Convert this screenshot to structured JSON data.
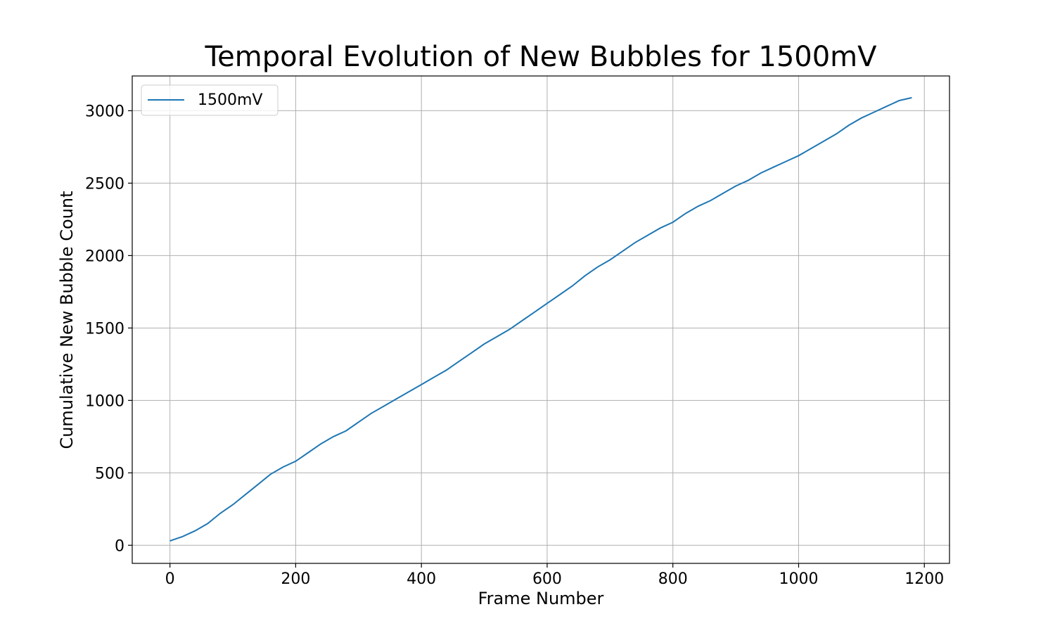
{
  "chart_data": {
    "type": "line",
    "title": "Temporal Evolution of New Bubbles for 1500mV",
    "xlabel": "Frame Number",
    "ylabel": "Cumulative New Bubble Count",
    "xlim": [
      -60,
      1240
    ],
    "ylim": [
      -125,
      3240
    ],
    "xticks": [
      0,
      200,
      400,
      600,
      800,
      1000,
      1200
    ],
    "yticks": [
      0,
      500,
      1000,
      1500,
      2000,
      2500,
      3000
    ],
    "grid": true,
    "legend_position": "top-left",
    "series": [
      {
        "name": "1500mV",
        "color": "#1f77b4",
        "x": [
          0,
          20,
          40,
          60,
          80,
          100,
          120,
          140,
          160,
          180,
          200,
          220,
          240,
          260,
          280,
          300,
          320,
          340,
          360,
          380,
          400,
          420,
          440,
          460,
          480,
          500,
          520,
          540,
          560,
          580,
          600,
          620,
          640,
          660,
          680,
          700,
          720,
          740,
          760,
          780,
          800,
          820,
          840,
          860,
          880,
          900,
          920,
          940,
          960,
          980,
          1000,
          1020,
          1040,
          1060,
          1080,
          1100,
          1120,
          1140,
          1160,
          1180
        ],
        "y": [
          30,
          60,
          100,
          150,
          220,
          280,
          350,
          420,
          490,
          540,
          580,
          640,
          700,
          750,
          790,
          850,
          910,
          960,
          1010,
          1060,
          1110,
          1160,
          1210,
          1270,
          1330,
          1390,
          1440,
          1490,
          1550,
          1610,
          1670,
          1730,
          1790,
          1860,
          1920,
          1970,
          2030,
          2090,
          2140,
          2190,
          2230,
          2290,
          2340,
          2380,
          2430,
          2480,
          2520,
          2570,
          2610,
          2650,
          2690,
          2740,
          2790,
          2840,
          2900,
          2950,
          2990,
          3030,
          3070,
          3090
        ]
      }
    ]
  }
}
